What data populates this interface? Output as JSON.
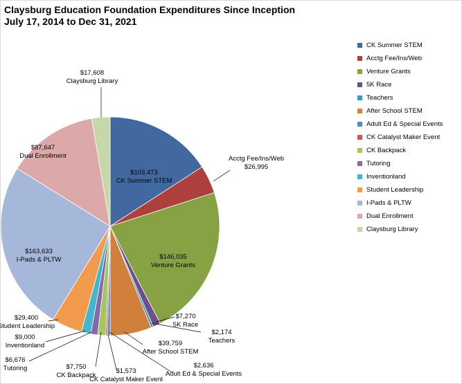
{
  "chart_data": {
    "type": "pie",
    "title": "Claysburg Education Foundation Expenditures Since Inception",
    "subtitle": "July 17, 2014  to Dec 31, 2021",
    "legend_position": "right",
    "slices": [
      {
        "name": "CK Summer STEM",
        "value": 103473,
        "value_label": "$103,473",
        "color": "#4169a0"
      },
      {
        "name": "Acctg Fee/Ins/Web",
        "value": 26995,
        "value_label": "$26,995",
        "color": "#ad3f3c"
      },
      {
        "name": "Venture Grants",
        "value": 146035,
        "value_label": "$146,035",
        "color": "#86a242"
      },
      {
        "name": "5K Race",
        "value": 7270,
        "value_label": "$7,270",
        "color": "#6e4f8e"
      },
      {
        "name": "Teachers",
        "value": 2174,
        "value_label": "$2,174",
        "color": "#3a9ab0"
      },
      {
        "name": "After School STEM",
        "value": 39759,
        "value_label": "$39,759",
        "color": "#d0803a"
      },
      {
        "name": "Adult Ed & Special Events",
        "value": 2636,
        "value_label": "$2,636",
        "color": "#5b86c0"
      },
      {
        "name": "CK Catalyst Maker Event",
        "value": 1573,
        "value_label": "$1,573",
        "color": "#cc5555"
      },
      {
        "name": "CK Backpack",
        "value": 7750,
        "value_label": "$7,750",
        "color": "#a4c75f"
      },
      {
        "name": "Tutoring",
        "value": 6676,
        "value_label": "$6,676",
        "color": "#8469ac"
      },
      {
        "name": "Inventionland",
        "value": 9000,
        "value_label": "$9,000",
        "color": "#43b5cd"
      },
      {
        "name": "Student Leadership",
        "value": 29400,
        "value_label": "$29,400",
        "color": "#f39b4c"
      },
      {
        "name": "I-Pads & PLTW",
        "value": 163633,
        "value_label": "$163,633",
        "color": "#a6b8d9"
      },
      {
        "name": "Dual Enrollment",
        "value": 87647,
        "value_label": "$87,647",
        "color": "#dca9a8"
      },
      {
        "name": "Claysburg Library",
        "value": 17608,
        "value_label": "$17,608",
        "color": "#c7d8a8"
      }
    ]
  }
}
